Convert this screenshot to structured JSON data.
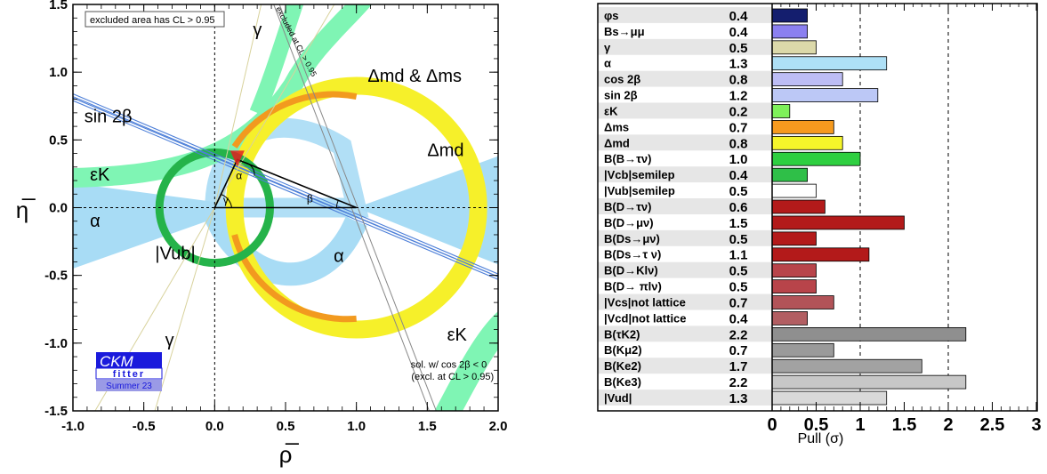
{
  "chart_data": [
    {
      "type": "contour",
      "xlabel": "ρ̅",
      "ylabel": "η̅",
      "xlim": [
        -1.0,
        2.0
      ],
      "ylim": [
        -1.5,
        1.5
      ],
      "xticks": [
        "-1.0",
        "-0.5",
        "0.0",
        "0.5",
        "1.0",
        "1.5",
        "2.0"
      ],
      "yticks": [
        "-1.5",
        "-1.0",
        "-0.5",
        "0.0",
        "0.5",
        "1.0",
        "1.5"
      ],
      "apex": {
        "rho": 0.16,
        "eta": 0.355
      },
      "notes": {
        "top_box": "excluded area has CL > 0.95",
        "diag": "excluded at CL > 0.95",
        "solution_1": "sol. w/ cos 2β < 0",
        "solution_2": "(excl. at CL > 0.95)"
      },
      "labels": {
        "gamma_top": "γ",
        "gamma_bottom": "γ",
        "dmd_dms": "Δmd & Δms",
        "dmd": "Δmd",
        "sin2b": "sin 2β",
        "epsk_left": "εK",
        "epsk_right": "εK",
        "alpha_left": "α",
        "alpha_right": "α",
        "vub": "|Vub|",
        "tri_alpha": "α",
        "tri_beta": "β",
        "tri_gamma": "γ"
      },
      "logo": {
        "name": "CKM",
        "sub": "fitter",
        "season": "Summer 23"
      },
      "colors": {
        "alpha": "#a8dcf5",
        "epsk": "#7ff5b4",
        "dmd": "#f6f02a",
        "dms": "#f29a1f",
        "vub": "#25b34a",
        "sin2b": "#4d7fd8",
        "gamma": "#d8d29c",
        "apex": "#e02020"
      }
    },
    {
      "type": "bar",
      "orientation": "horizontal",
      "xlabel": "Pull (σ)",
      "xlim": [
        0,
        3
      ],
      "xticks": [
        "0",
        "0.5",
        "1",
        "1.5",
        "2",
        "2.5",
        "3"
      ],
      "rows": [
        {
          "label": "φs",
          "value": 0.4,
          "color": "#141e6e"
        },
        {
          "label": "Bs→μμ",
          "value": 0.4,
          "color": "#8b80f0"
        },
        {
          "label": "γ",
          "value": 0.5,
          "color": "#dcd9aa"
        },
        {
          "label": "α",
          "value": 1.3,
          "color": "#aee0f6"
        },
        {
          "label": "cos 2β",
          "value": 0.8,
          "color": "#bdbdf5"
        },
        {
          "label": "sin 2β",
          "value": 1.2,
          "color": "#bcc8f6"
        },
        {
          "label": "εK",
          "value": 0.2,
          "color": "#7ef05a"
        },
        {
          "label": "Δms",
          "value": 0.7,
          "color": "#f69a1e"
        },
        {
          "label": "Δmd",
          "value": 0.8,
          "color": "#f5f52a"
        },
        {
          "label": "B(B→τν)",
          "value": 1.0,
          "color": "#2ecf40"
        },
        {
          "label": "|Vcb|semilep",
          "value": 0.4,
          "color": "#2fbf48"
        },
        {
          "label": "|Vub|semilep",
          "value": 0.5,
          "color": "#ffffff"
        },
        {
          "label": "B(D→τν)",
          "value": 0.6,
          "color": "#b31a1a"
        },
        {
          "label": "B(D→μν)",
          "value": 1.5,
          "color": "#b31a1a"
        },
        {
          "label": "B(Ds→μν)",
          "value": 0.5,
          "color": "#b31a1a"
        },
        {
          "label": "B(Ds→τ ν)",
          "value": 1.1,
          "color": "#b31a1a"
        },
        {
          "label": "B(D→Klν)",
          "value": 0.5,
          "color": "#b8444a"
        },
        {
          "label": "B(D→ πlν)",
          "value": 0.5,
          "color": "#b8444a"
        },
        {
          "label": "|Vcs|not lattice",
          "value": 0.7,
          "color": "#b25358"
        },
        {
          "label": "|Vcd|not lattice",
          "value": 0.4,
          "color": "#b25e62"
        },
        {
          "label": "B(τK2)",
          "value": 2.2,
          "color": "#8f8f8f"
        },
        {
          "label": "B(Kμ2)",
          "value": 0.7,
          "color": "#9a9a9a"
        },
        {
          "label": "B(Ke2)",
          "value": 1.7,
          "color": "#a2a2a2"
        },
        {
          "label": "B(Ke3)",
          "value": 2.2,
          "color": "#c7c7c7"
        },
        {
          "label": "|Vud|",
          "value": 1.3,
          "color": "#d9d9d9"
        }
      ],
      "value_texts": [
        "0.4",
        "0.4",
        "0.5",
        "1.3",
        "0.8",
        "1.2",
        "0.2",
        "0.7",
        "0.8",
        "1.0",
        "0.4",
        "0.5",
        "0.6",
        "1.5",
        "0.5",
        "1.1",
        "0.5",
        "0.5",
        "0.7",
        "0.4",
        "2.2",
        "0.7",
        "1.7",
        "2.2",
        "1.3"
      ]
    }
  ]
}
